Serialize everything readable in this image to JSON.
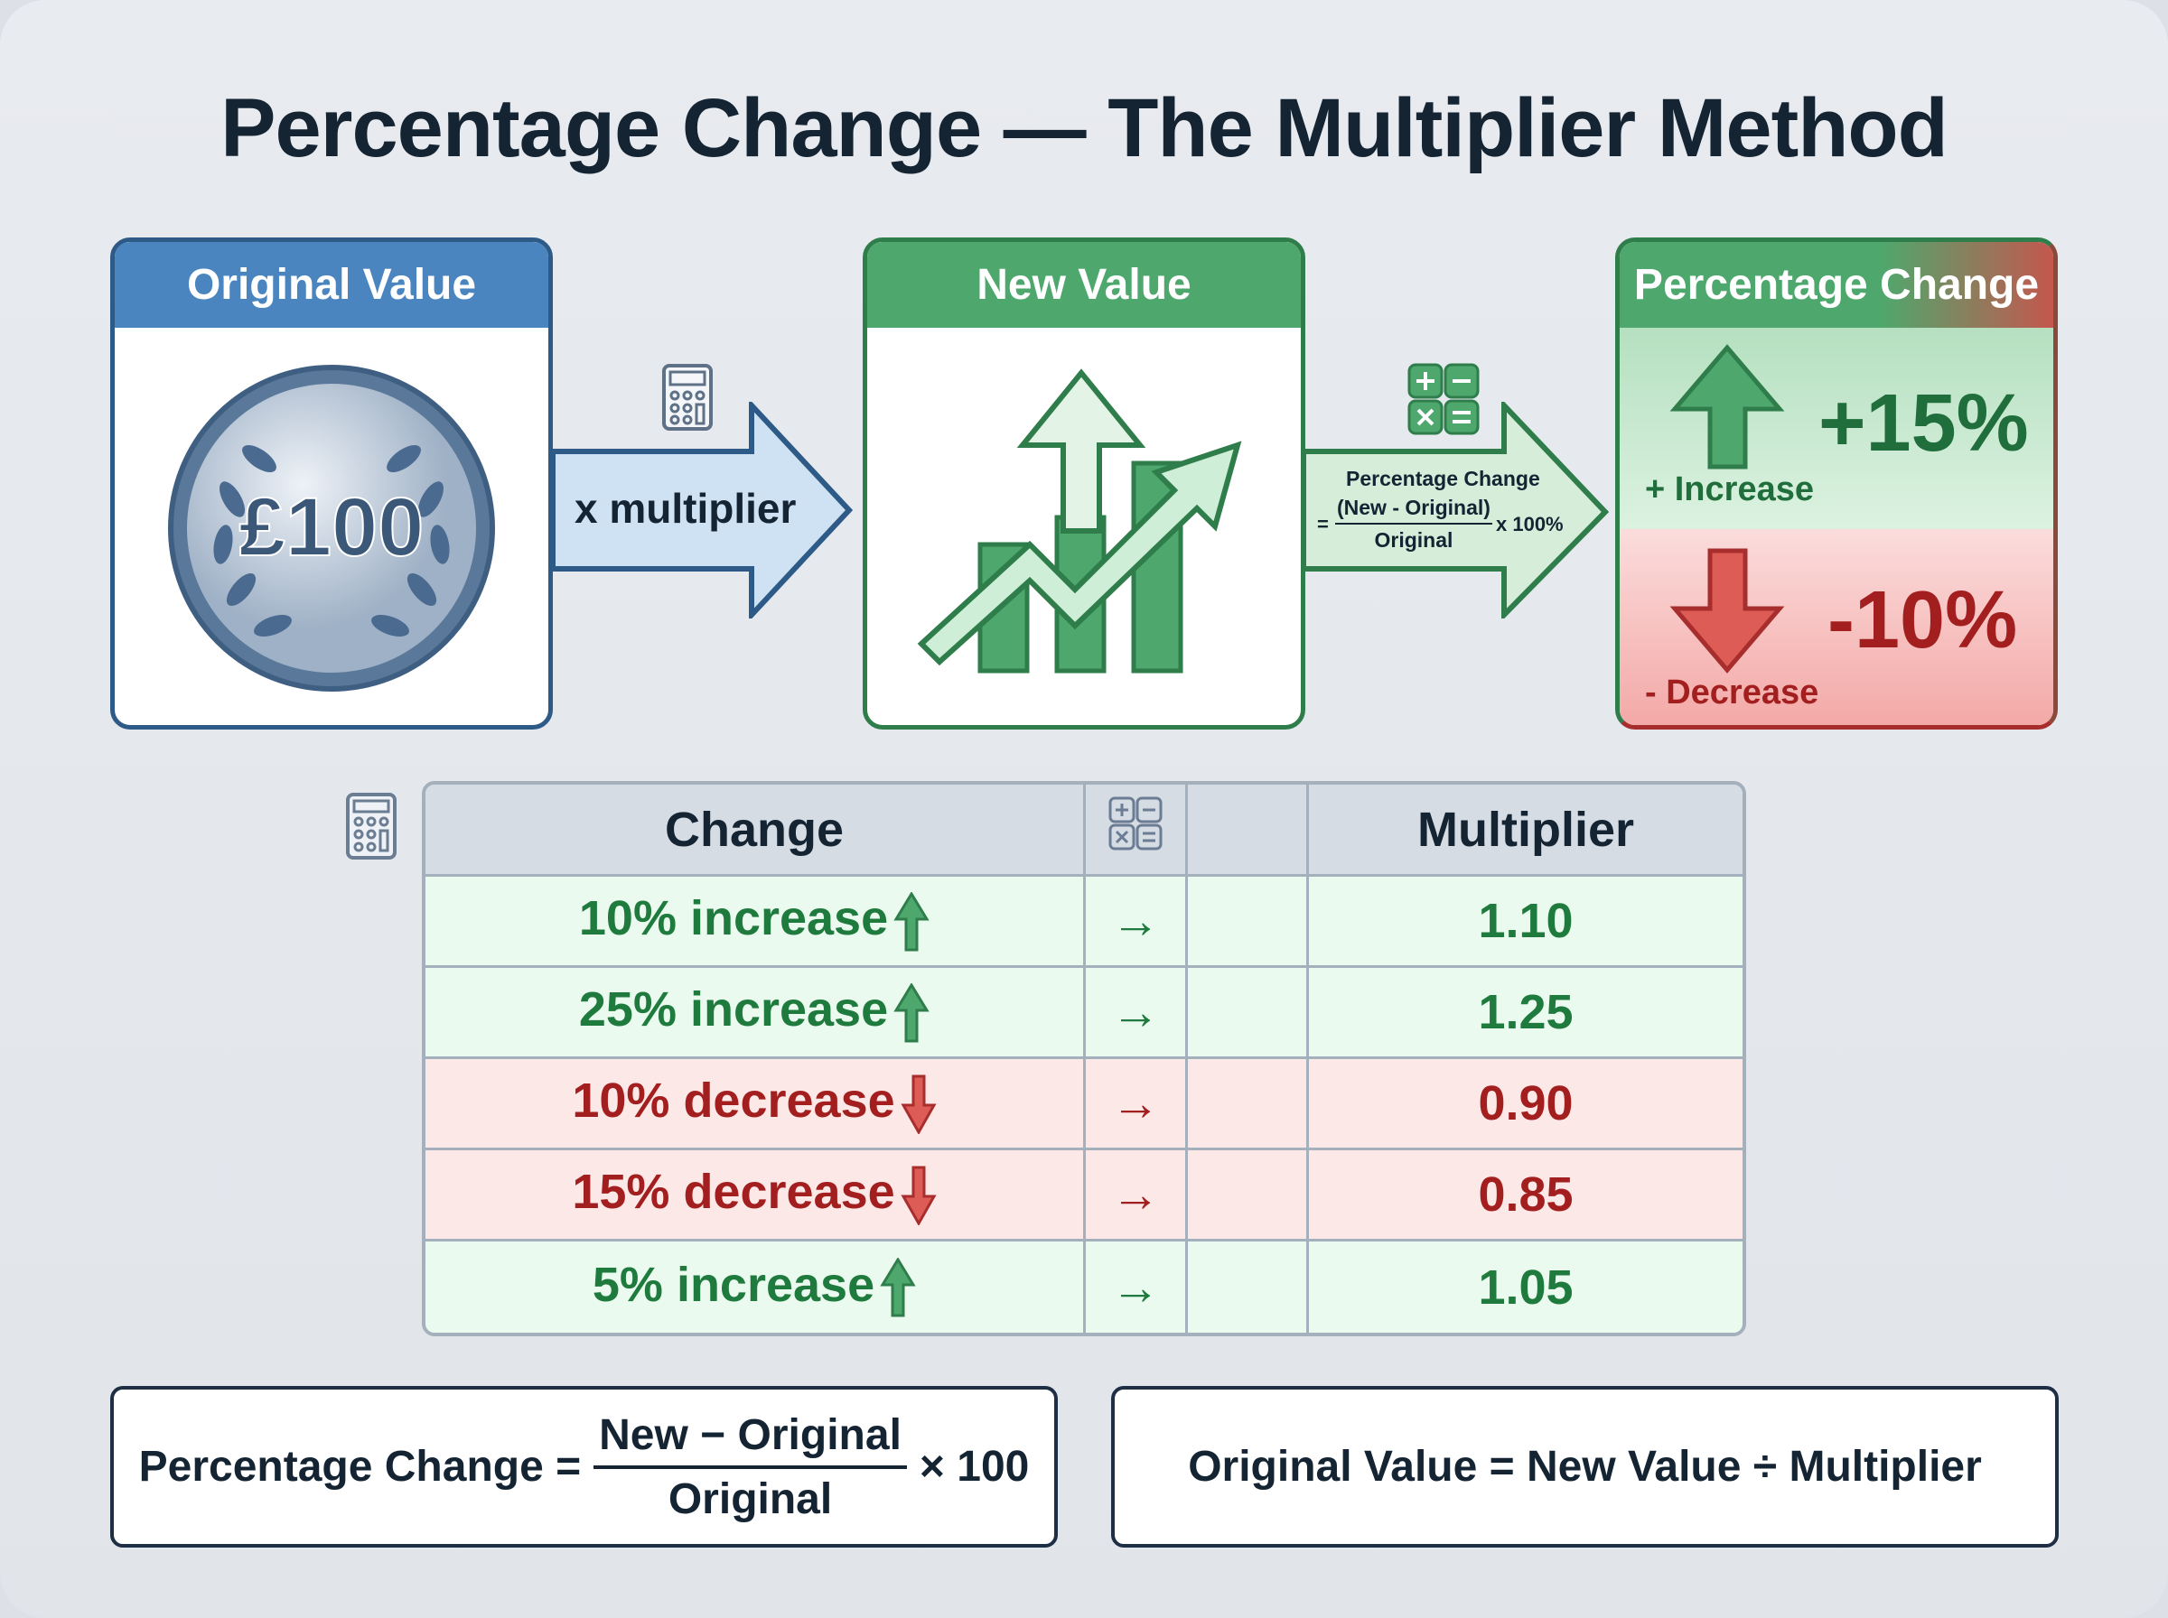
{
  "title": "Percentage Change — The Multiplier Method",
  "cards": {
    "original": {
      "header": "Original Value",
      "coin": "£100"
    },
    "new": {
      "header": "New Value"
    },
    "percent": {
      "header": "Percentage Change",
      "increase_value": "+15%",
      "increase_label": "+ Increase",
      "decrease_value": "-10%",
      "decrease_label": "- Decrease"
    }
  },
  "arrow1": {
    "label": "x multiplier"
  },
  "arrow2": {
    "title": "Percentage Change",
    "eq": "=",
    "numerator": "(New - Original)",
    "denominator": "Original",
    "times": "x 100%"
  },
  "table": {
    "headers": [
      "Change",
      "",
      "Multiplier"
    ],
    "rows": [
      {
        "change": "10% increase",
        "direction": "up",
        "arrow": "→",
        "multiplier": "1.10"
      },
      {
        "change": "25% increase",
        "direction": "up",
        "arrow": "→",
        "multiplier": "1.25"
      },
      {
        "change": "10% decrease",
        "direction": "down",
        "arrow": "→",
        "multiplier": "0.90"
      },
      {
        "change": "15% decrease",
        "direction": "down",
        "arrow": "→",
        "multiplier": "0.85"
      },
      {
        "change": "5% increase",
        "direction": "up",
        "arrow": "→",
        "multiplier": "1.05"
      }
    ]
  },
  "formulas": {
    "left": {
      "lhs": "Percentage Change =",
      "numerator": "New − Original",
      "denominator": "Original",
      "times": "× 100"
    },
    "right": "Original Value = New Value ÷ Multiplier"
  },
  "colors": {
    "blue": "#4a85bf",
    "green": "#4ea86d",
    "red": "#c4574e",
    "dark_green": "#1f7a3d",
    "dark_red": "#a31e1e"
  }
}
